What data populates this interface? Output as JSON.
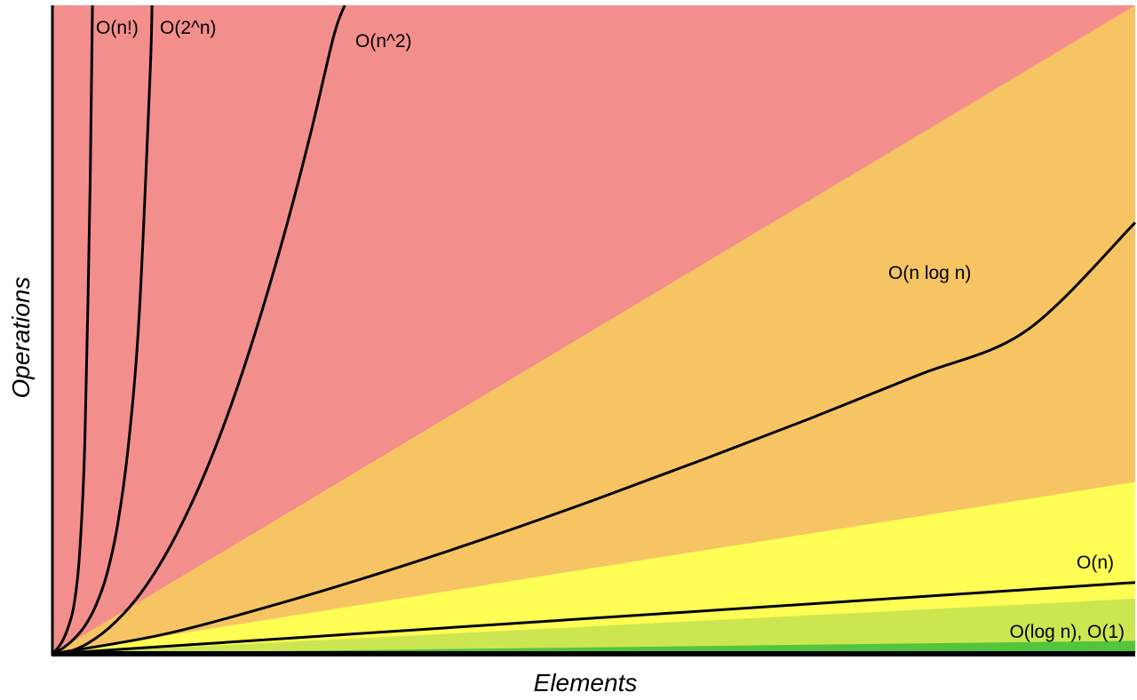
{
  "chart_data": {
    "type": "line",
    "title": "",
    "xlabel": "Elements",
    "ylabel": "Operations",
    "xlim": [
      0,
      100
    ],
    "ylim": [
      0,
      100
    ],
    "grid": false,
    "legend": "none",
    "colors": {
      "horrible": "#f28f8d",
      "bad": "#f6c463",
      "fair": "#fefe55",
      "good": "#cce651",
      "excellent": "#52c53c",
      "curve": "#000000"
    },
    "regions": [
      {
        "name": "horrible",
        "color": "#f28f8d",
        "upper_slope": null
      },
      {
        "name": "bad",
        "color": "#f6c463",
        "upper_slope": 1.0
      },
      {
        "name": "fair",
        "color": "#fefe55",
        "upper_slope": 0.265
      },
      {
        "name": "good",
        "color": "#cce651",
        "upper_slope": 0.085
      },
      {
        "name": "excellent",
        "color": "#52c53c",
        "upper_slope": 0.02
      }
    ],
    "series": [
      {
        "name": "O(n!)",
        "x": [
          0,
          0.5,
          1,
          1.5,
          2,
          2.5,
          3,
          3.5,
          3.7
        ],
        "y": [
          0,
          0.9,
          2.2,
          4.3,
          7.6,
          15.2,
          33.0,
          74.0,
          100
        ]
      },
      {
        "name": "O(2^n)",
        "x": [
          0,
          1,
          2,
          3,
          4,
          5,
          6,
          7,
          8,
          9,
          9.2
        ],
        "y": [
          0,
          0.9,
          2.3,
          4.3,
          7.4,
          12.1,
          19.7,
          31.9,
          51.8,
          88.5,
          100
        ]
      },
      {
        "name": "O(n^2)",
        "x": [
          0,
          2,
          4,
          6,
          8,
          10,
          12,
          14,
          16,
          18,
          20,
          22,
          24,
          26,
          27
        ],
        "y": [
          0,
          0.6,
          2.4,
          5.2,
          9.0,
          14.0,
          20.2,
          27.5,
          36.0,
          45.7,
          56.5,
          68.3,
          81.3,
          95.4,
          100
        ]
      },
      {
        "name": "O(n log n)",
        "x": [
          0,
          10,
          20,
          30,
          40,
          50,
          60,
          70,
          80,
          90,
          100
        ],
        "y": [
          0,
          2.9,
          7.3,
          12.3,
          17.8,
          23.7,
          29.9,
          36.3,
          43.0,
          49.9,
          66.5
        ]
      },
      {
        "name": "O(n)",
        "x": [
          0,
          100
        ],
        "y": [
          0,
          11.0
        ]
      },
      {
        "name": "O(log n), O(1)",
        "x": [
          0,
          100
        ],
        "y": [
          0,
          0
        ]
      }
    ],
    "labels": [
      {
        "series": "O(n!)",
        "text": "O(n!)"
      },
      {
        "series": "O(2^n)",
        "text": "O(2^n)"
      },
      {
        "series": "O(n^2)",
        "text": "O(n^2)"
      },
      {
        "series": "O(n log n)",
        "text": "O(n log n)"
      },
      {
        "series": "O(n)",
        "text": "O(n)"
      },
      {
        "series": "O(log n), O(1)",
        "text": "O(log n), O(1)"
      }
    ]
  }
}
